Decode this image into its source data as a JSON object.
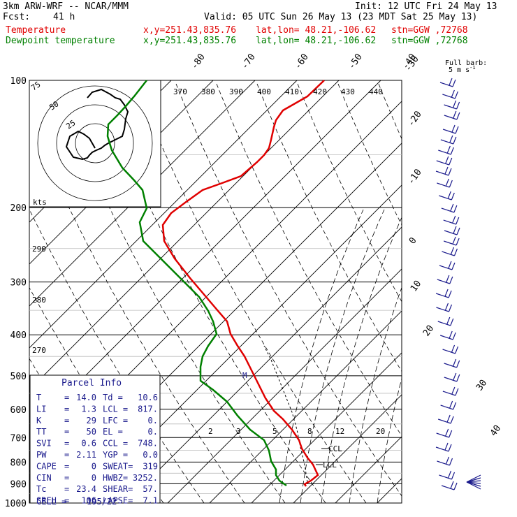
{
  "header": {
    "model": "3km ARW-WRF -- NCAR/MMM",
    "init": "Init: 12 UTC Fri 24 May 13",
    "fcst_label": "Fcst:",
    "fcst_value": "41 h",
    "valid": "Valid: 05 UTC Sun 26 May 13 (23 MDT Sat 25 May 13)",
    "lines": [
      {
        "name": "Temperature",
        "xy": "x,y=251.43,835.76",
        "latlon": "lat,lon= 48.21,-106.62",
        "stn": "stn=GGW ,72768",
        "color": "#e00000"
      },
      {
        "name": "Dewpoint temperature",
        "xy": "x,y=251.43,835.76",
        "latlon": "lat,lon= 48.21,-106.62",
        "stn": "stn=GGW ,72768",
        "color": "#008000"
      }
    ]
  },
  "chart_data": {
    "type": "line",
    "subtype": "skew-T log-p sounding",
    "pressure_ticks": [
      "100",
      "200",
      "300",
      "400",
      "500",
      "600",
      "700",
      "800",
      "900",
      "1000"
    ],
    "temp_isotherm_labels": [
      "-80",
      "-70",
      "-60",
      "-50",
      "-40",
      "-30",
      "-20",
      "-10",
      "0",
      "10",
      "20",
      "30",
      "40"
    ],
    "theta_labels": [
      "370",
      "380",
      "390",
      "400",
      "410",
      "420",
      "430",
      "440"
    ],
    "left_axis_labels": [
      "290",
      "280",
      "270"
    ],
    "mixing_ratio_labels": [
      "2",
      "3",
      "5",
      "8",
      "12",
      "20"
    ],
    "series": [
      {
        "name": "Temperature",
        "color": "#e00000",
        "points": [
          [
            464,
            115
          ],
          [
            440,
            138
          ],
          [
            405,
            158
          ],
          [
            395,
            172
          ],
          [
            392,
            182
          ],
          [
            388,
            200
          ],
          [
            385,
            212
          ],
          [
            378,
            222
          ],
          [
            368,
            232
          ],
          [
            345,
            252
          ],
          [
            318,
            262
          ],
          [
            290,
            272
          ],
          [
            265,
            290
          ],
          [
            245,
            305
          ],
          [
            233,
            322
          ],
          [
            235,
            345
          ],
          [
            250,
            370
          ],
          [
            272,
            398
          ],
          [
            295,
            425
          ],
          [
            312,
            445
          ],
          [
            325,
            460
          ],
          [
            330,
            478
          ],
          [
            340,
            495
          ],
          [
            350,
            510
          ],
          [
            360,
            530
          ],
          [
            370,
            550
          ],
          [
            380,
            570
          ],
          [
            392,
            588
          ],
          [
            405,
            600
          ],
          [
            418,
            615
          ],
          [
            428,
            630
          ],
          [
            432,
            642
          ],
          [
            440,
            655
          ],
          [
            448,
            665
          ],
          [
            455,
            680
          ],
          [
            445,
            688
          ],
          [
            436,
            693
          ],
          [
            438,
            696
          ]
        ]
      },
      {
        "name": "Dewpoint temperature",
        "color": "#008000",
        "points": [
          [
            210,
            115
          ],
          [
            192,
            138
          ],
          [
            180,
            152
          ],
          [
            168,
            165
          ],
          [
            155,
            178
          ],
          [
            154,
            195
          ],
          [
            160,
            215
          ],
          [
            175,
            240
          ],
          [
            192,
            258
          ],
          [
            204,
            272
          ],
          [
            210,
            298
          ],
          [
            200,
            318
          ],
          [
            205,
            345
          ],
          [
            225,
            365
          ],
          [
            245,
            385
          ],
          [
            265,
            405
          ],
          [
            285,
            425
          ],
          [
            298,
            445
          ],
          [
            305,
            460
          ],
          [
            310,
            478
          ],
          [
            298,
            495
          ],
          [
            290,
            510
          ],
          [
            287,
            525
          ],
          [
            287,
            545
          ],
          [
            305,
            558
          ],
          [
            325,
            575
          ],
          [
            340,
            595
          ],
          [
            358,
            615
          ],
          [
            378,
            630
          ],
          [
            385,
            645
          ],
          [
            388,
            660
          ],
          [
            395,
            672
          ],
          [
            395,
            680
          ],
          [
            400,
            688
          ],
          [
            410,
            695
          ]
        ]
      },
      {
        "name": "Parcel",
        "color": "#000000",
        "points": [
          [
            440,
            690
          ],
          [
            436,
            665
          ],
          [
            430,
            640
          ],
          [
            425,
            615
          ],
          [
            418,
            590
          ],
          [
            408,
            565
          ],
          [
            398,
            540
          ],
          [
            388,
            515
          ],
          [
            378,
            495
          ]
        ]
      }
    ],
    "annotations": [
      "CCL",
      "LCL",
      "M"
    ],
    "hodograph": {
      "kts_label": "kts",
      "ring_labels": [
        "75",
        "50",
        "25"
      ],
      "path": [
        [
          125,
          140
        ],
        [
          132,
          132
        ],
        [
          145,
          128
        ],
        [
          158,
          135
        ],
        [
          165,
          140
        ],
        [
          172,
          142
        ],
        [
          178,
          150
        ],
        [
          183,
          160
        ],
        [
          180,
          170
        ],
        [
          178,
          185
        ],
        [
          175,
          195
        ],
        [
          165,
          200
        ],
        [
          155,
          205
        ],
        [
          150,
          208
        ],
        [
          145,
          212
        ],
        [
          138,
          215
        ],
        [
          132,
          218
        ],
        [
          128,
          222
        ],
        [
          125,
          226
        ],
        [
          118,
          228
        ],
        [
          105,
          225
        ],
        [
          95,
          210
        ],
        [
          100,
          195
        ],
        [
          112,
          188
        ],
        [
          120,
          192
        ],
        [
          128,
          198
        ],
        [
          132,
          205
        ],
        [
          136,
          212
        ]
      ]
    },
    "wind_label": "Full barb = 5 m s⁻¹",
    "wind_label_text": {
      "line1": "Full barb:",
      "line2": "5 m s",
      "sup": "-1"
    }
  },
  "parcel_info": {
    "title": "Parcel Info",
    "rows": [
      {
        "k": "T",
        "v": "14.0",
        "k2": "Td =",
        "v2": "10.6"
      },
      {
        "k": "LI",
        "v": "1.3",
        "k2": "LCL =",
        "v2": "817."
      },
      {
        "k": "K",
        "v": "29",
        "k2": "LFC =",
        "v2": "0."
      },
      {
        "k": "TT",
        "v": "50",
        "k2": "EL =",
        "v2": "0."
      },
      {
        "k": "SVI",
        "v": "0.6",
        "k2": "CCL =",
        "v2": "748."
      },
      {
        "k": "PW",
        "v": "2.11",
        "k2": "YGP =",
        "v2": "0.0"
      },
      {
        "k": "CAPE",
        "v": "0",
        "k2": "SWEAT=",
        "v2": "319"
      },
      {
        "k": "CIN",
        "v": "0",
        "k2": "HWBZ=",
        "v2": "3252."
      },
      {
        "k": "Tc",
        "v": "23.4",
        "k2": "SHEAR=",
        "v2": "57."
      },
      {
        "k": "SREH",
        "v": "106",
        "k2": "LAPSE=",
        "v2": "7.1"
      }
    ],
    "cell_label": "CELL =",
    "cell_value": "195/22"
  },
  "colors": {
    "temperature": "#e00000",
    "dewpoint": "#008000",
    "grid": "#000000",
    "barbs": "#1a1a8c"
  }
}
